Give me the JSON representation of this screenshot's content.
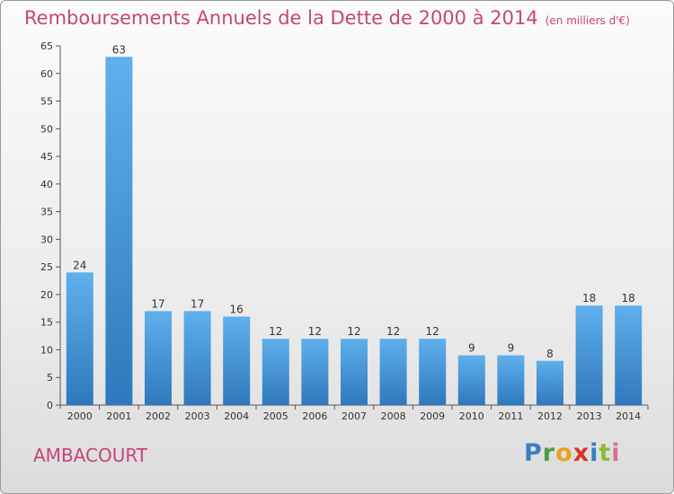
{
  "header": {
    "title": "Remboursements Annuels de la Dette de 2000 à 2014",
    "unit": "(en milliers d'€)"
  },
  "commune": "AMBACOURT",
  "logo": {
    "text": "Proxiti"
  },
  "colors": {
    "title": "#c6457a",
    "bar_top": "#5fb0ec",
    "bar_bottom": "#2f78bd"
  },
  "chart_data": {
    "type": "bar",
    "title": "Remboursements Annuels de la Dette de 2000 à 2014",
    "categories": [
      "2000",
      "2001",
      "2002",
      "2003",
      "2004",
      "2005",
      "2006",
      "2007",
      "2008",
      "2009",
      "2010",
      "2011",
      "2012",
      "2013",
      "2014"
    ],
    "values": [
      24,
      63,
      17,
      17,
      16,
      12,
      12,
      12,
      12,
      12,
      9,
      9,
      8,
      18,
      18
    ],
    "yticks": [
      0,
      5,
      10,
      15,
      20,
      25,
      30,
      35,
      40,
      45,
      50,
      55,
      60,
      65
    ],
    "ylim": [
      0,
      65
    ],
    "xlabel": "",
    "ylabel": "",
    "grid": false,
    "data_labels": true
  }
}
